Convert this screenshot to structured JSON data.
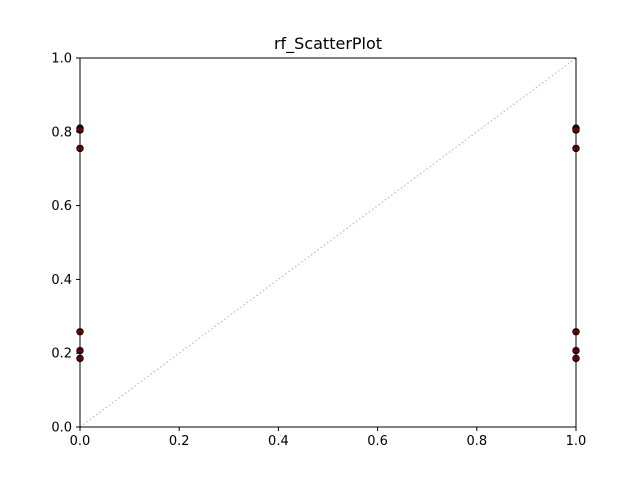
{
  "chart_data": {
    "type": "scatter",
    "title": "rf_ScatterPlot",
    "xlabel": "",
    "ylabel": "",
    "xlim": [
      0,
      1
    ],
    "ylim": [
      0,
      1
    ],
    "xticks": [
      "0.0",
      "0.2",
      "0.4",
      "0.6",
      "0.8",
      "1.0"
    ],
    "yticks": [
      "0.0",
      "0.2",
      "0.4",
      "0.6",
      "0.8",
      "1.0"
    ],
    "grid": false,
    "reference_line": {
      "from": [
        0,
        0
      ],
      "to": [
        1,
        1
      ],
      "style": "dotted",
      "color": "#b0b0b0"
    },
    "marker_fill": "#8b0000",
    "marker_edge": "#000000",
    "points": [
      {
        "x": 0,
        "y": 0.81
      },
      {
        "x": 0,
        "y": 0.805
      },
      {
        "x": 0,
        "y": 0.755
      },
      {
        "x": 0,
        "y": 0.258
      },
      {
        "x": 0,
        "y": 0.207
      },
      {
        "x": 0,
        "y": 0.186
      },
      {
        "x": 1,
        "y": 0.81
      },
      {
        "x": 1,
        "y": 0.805
      },
      {
        "x": 1,
        "y": 0.755
      },
      {
        "x": 1,
        "y": 0.258
      },
      {
        "x": 1,
        "y": 0.207
      },
      {
        "x": 1,
        "y": 0.186
      }
    ]
  }
}
